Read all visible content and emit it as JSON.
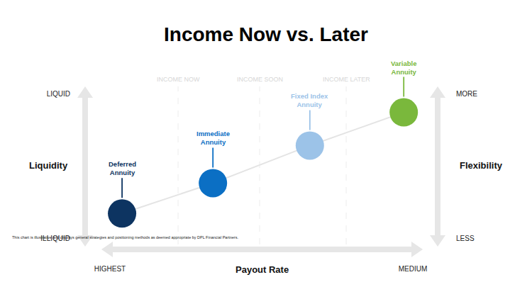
{
  "chart_data": {
    "type": "scatter",
    "title": "Income Now vs. Later",
    "x_label": "Payout Rate",
    "y_label": "Liquidity",
    "y2_label": "Flexibility",
    "column_labels": [
      "INCOME NOW",
      "INCOME SOON",
      "INCOME LATER"
    ],
    "point_labels": [
      "Deferred Annuity",
      "Immediate Annuity",
      "Fixed Index Annuity",
      "Variable Annuity"
    ],
    "x": [
      0.4,
      3.4,
      6.6,
      9.7
    ],
    "values": [
      1.7,
      3.8,
      6.4,
      8.7
    ],
    "colors": [
      "#0d3461",
      "#0b6fc4",
      "#9cc3e8",
      "#7ab83c"
    ],
    "marker": "circle",
    "xlim": [
      0,
      10
    ],
    "xticks": [
      {
        "value": 0,
        "label": "HIGHEST"
      },
      {
        "value": 10,
        "label": "MEDIUM"
      }
    ],
    "ylim": [
      0,
      10
    ],
    "yticks": [
      {
        "value": 0,
        "label": "ILLIQUID"
      },
      {
        "value": 10,
        "label": "LIQUID"
      }
    ],
    "y2lim": [
      0,
      10
    ],
    "y2ticks": [
      {
        "value": 0,
        "label": "LESS"
      },
      {
        "value": 10,
        "label": "MORE"
      }
    ],
    "grid": false,
    "footnote": "This chart is illustrative and displays general strategies and positioning methods as deemed appropriate by DPL Financial Partners."
  }
}
